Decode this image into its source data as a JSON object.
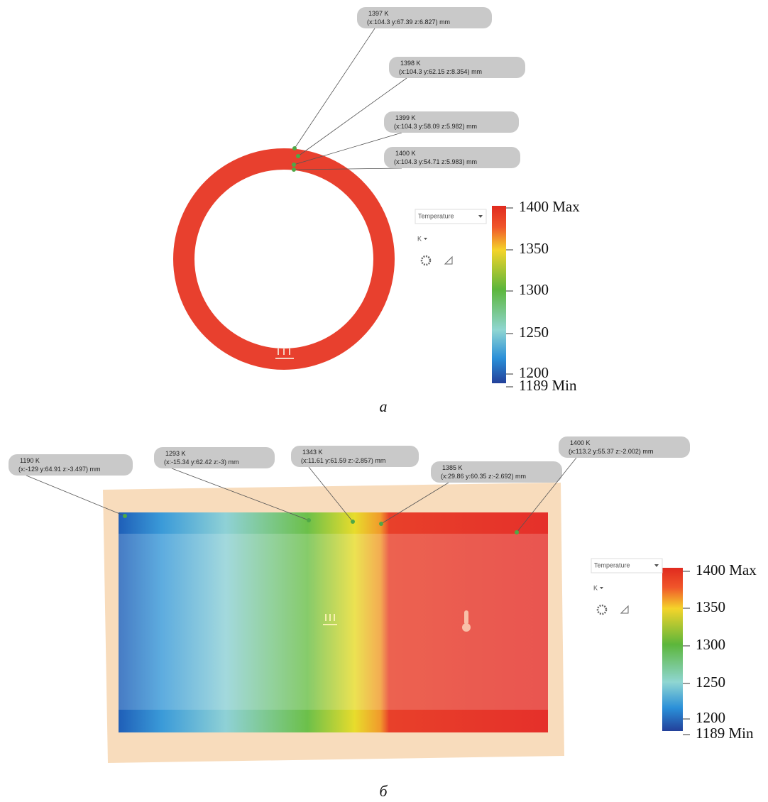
{
  "panels": [
    {
      "caption": "а",
      "probes": [
        {
          "value": "1397 K",
          "coords": "(x:104.3 y:67.39 z:6.827) mm"
        },
        {
          "value": "1398 K",
          "coords": "(x:104.3 y:62.15 z:8.354) mm"
        },
        {
          "value": "1399 K",
          "coords": "(x:104.3 y:58.09 z:5.982) mm"
        },
        {
          "value": "1400 K",
          "coords": "(x:104.3 y:54.71 z:5.983) mm"
        }
      ],
      "legend": {
        "field": "Temperature",
        "unit": "K",
        "scale": [
          "1400 Max",
          "1350",
          "1300",
          "1250",
          "1200",
          "1189 Min"
        ]
      }
    },
    {
      "caption": "б",
      "probes": [
        {
          "value": "1190 K",
          "coords": "(x:-129 y:64.91 z:-3.497) mm"
        },
        {
          "value": "1293 K",
          "coords": "(x:-15.34 y:62.42 z:-3) mm"
        },
        {
          "value": "1343 K",
          "coords": "(x:11.61 y:61.59 z:-2.857) mm"
        },
        {
          "value": "1385 K",
          "coords": "(x:29.86 y:60.35 z:-2.692) mm"
        },
        {
          "value": "1400 K",
          "coords": "(x:113.2 y:55.37 z:-2.002) mm"
        }
      ],
      "legend": {
        "field": "Temperature",
        "unit": "K",
        "scale": [
          "1400 Max",
          "1350",
          "1300",
          "1250",
          "1200",
          "1189 Min"
        ]
      }
    }
  ]
}
